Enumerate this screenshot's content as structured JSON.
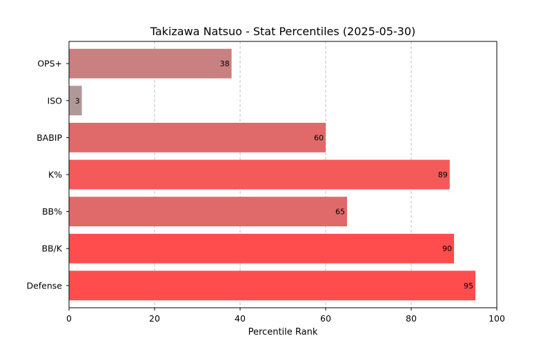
{
  "chart_data": {
    "type": "bar",
    "orientation": "horizontal",
    "title": "Takizawa Natsuo - Stat Percentiles (2025-05-30)",
    "xlabel": "Percentile Rank",
    "ylabel": "",
    "xlim": [
      0,
      100
    ],
    "xticks": [
      "0",
      "20",
      "40",
      "60",
      "80",
      "100"
    ],
    "grid": "vertical dashed",
    "categories": [
      "OPS+",
      "ISO",
      "BABIP",
      "K%",
      "BB%",
      "BB/K",
      "Defense"
    ],
    "values": [
      38,
      3,
      60,
      89,
      65,
      90,
      95
    ],
    "value_labels": [
      "38",
      "3",
      "60",
      "89",
      "65",
      "90",
      "95"
    ],
    "colors": [
      "#c88080",
      "#b09898",
      "#e06a6a",
      "#f55a5a",
      "#e06a6a",
      "#ff4d4d",
      "#ff4d4d"
    ]
  }
}
